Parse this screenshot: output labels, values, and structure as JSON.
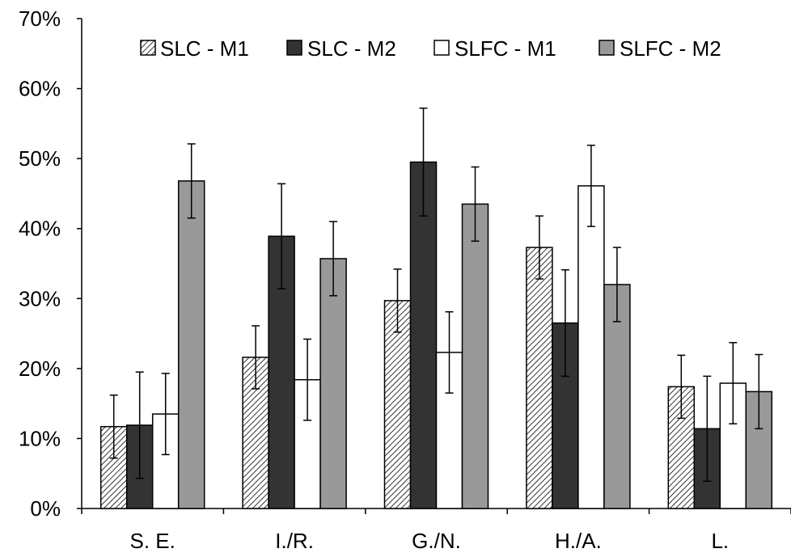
{
  "chart_data": {
    "type": "bar",
    "title": "",
    "xlabel": "",
    "ylabel": "",
    "ylim": [
      0,
      70
    ],
    "y_ticks": [
      0,
      10,
      20,
      30,
      40,
      50,
      60,
      70
    ],
    "y_tick_labels": [
      "0%",
      "10%",
      "20%",
      "30%",
      "40%",
      "50%",
      "60%",
      "70%"
    ],
    "categories": [
      "S. E.",
      "I./R.",
      "G./N.",
      "H./A.",
      "L."
    ],
    "grid": false,
    "legend_position": "top",
    "series": [
      {
        "name": "SLC - M1",
        "fill": "hatched",
        "color": "#ffffff",
        "values": [
          11.7,
          21.6,
          29.7,
          37.3,
          17.4
        ],
        "error": [
          4.5,
          4.5,
          4.5,
          4.5,
          4.5
        ]
      },
      {
        "name": "SLC - M2",
        "fill": "solid",
        "color": "#333333",
        "values": [
          11.9,
          38.9,
          49.5,
          26.5,
          11.4
        ],
        "error": [
          7.6,
          7.5,
          7.7,
          7.6,
          7.5
        ]
      },
      {
        "name": "SLFC - M1",
        "fill": "solid",
        "color": "#ffffff",
        "values": [
          13.5,
          18.4,
          22.3,
          46.1,
          17.9
        ],
        "error": [
          5.8,
          5.8,
          5.8,
          5.8,
          5.8
        ]
      },
      {
        "name": "SLFC - M2",
        "fill": "solid",
        "color": "#999999",
        "values": [
          46.8,
          35.7,
          43.5,
          32.0,
          16.7
        ],
        "error": [
          5.3,
          5.3,
          5.3,
          5.3,
          5.3
        ]
      }
    ]
  }
}
